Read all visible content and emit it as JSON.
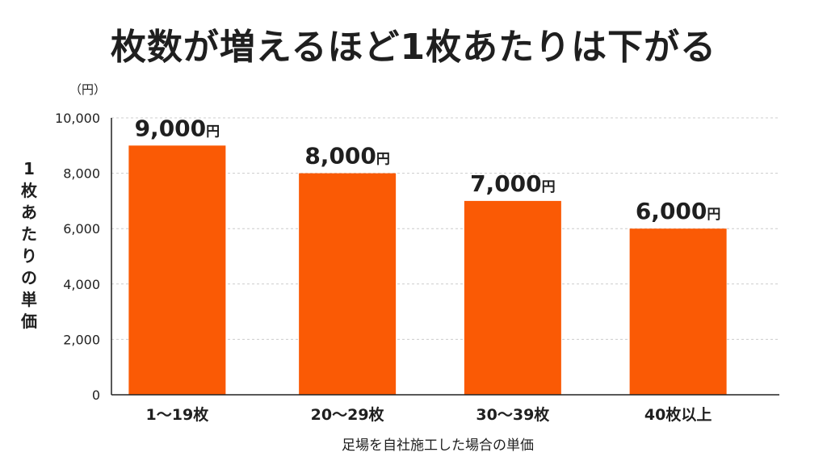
{
  "title": "枚数が増えるほど1枚あたりは下がる",
  "colors": {
    "bar": "#fa5a05",
    "axis": "#222222",
    "grid": "#cccccc"
  },
  "chart_data": {
    "type": "bar",
    "title": "枚数が増えるほど1枚あたりは下がる",
    "ylabel": "1枚あたりの単価",
    "yunit": "（円）",
    "xlabel": "足場を自社施工した場合の単価",
    "categories": [
      "1～19枚",
      "20～29枚",
      "30～39枚",
      "40枚以上"
    ],
    "values": [
      9000,
      8000,
      7000,
      6000
    ],
    "data_labels": [
      "9,000",
      "8,000",
      "7,000",
      "6,000"
    ],
    "data_label_unit": "円",
    "yticks": [
      "0",
      "2,000",
      "4,000",
      "6,000",
      "8,000",
      "10,000"
    ],
    "ytick_values": [
      0,
      2000,
      4000,
      6000,
      8000,
      10000
    ],
    "ylim": [
      0,
      10000
    ],
    "grid": true,
    "grid_style": "dashed"
  }
}
